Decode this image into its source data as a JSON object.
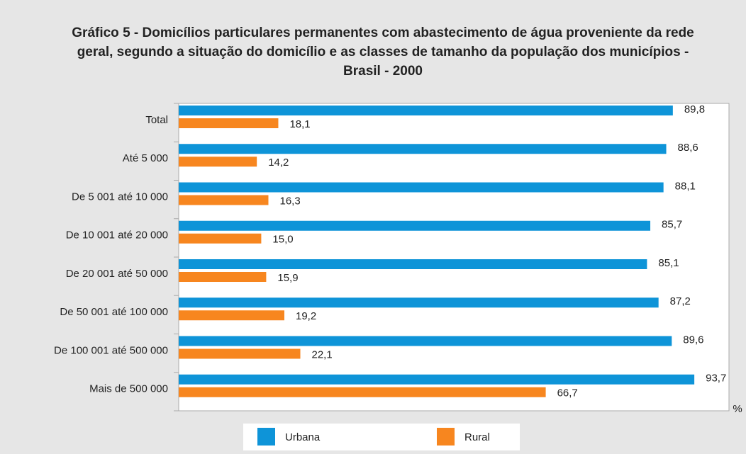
{
  "chart_data": {
    "type": "bar",
    "orientation": "horizontal",
    "title": "Gráfico 5  - Domicílios particulares permanentes com abastecimento de água proveniente da rede geral, segundo a situação do domicílio e as classes de tamanho da população dos municípios - Brasil - 2000",
    "x_label": "%",
    "categories": [
      "Total",
      "Até 5 000",
      "De 5 001 até 10 000",
      "De 10 001 até 20 000",
      "De 20 001 até 50 000",
      "De 50 001 até 100 000",
      "De 100 001 até 500 000",
      "Mais de 500 000"
    ],
    "series": [
      {
        "name": "Urbana",
        "color": "#0e94d8",
        "values": [
          89.8,
          88.6,
          88.1,
          85.7,
          85.1,
          87.2,
          89.6,
          93.7
        ],
        "value_labels": [
          "89,8",
          "88,6",
          "88,1",
          "85,7",
          "85,1",
          "87,2",
          "89,6",
          "93,7"
        ]
      },
      {
        "name": "Rural",
        "color": "#f7861f",
        "values": [
          18.1,
          14.2,
          16.3,
          15.0,
          15.9,
          19.2,
          22.1,
          66.7
        ],
        "value_labels": [
          "18,1",
          "14,2",
          "16,3",
          "15,0",
          "15,9",
          "19,2",
          "22,1",
          "66,7"
        ]
      }
    ],
    "xlim": [
      0,
      100
    ],
    "legend": "bottom"
  }
}
